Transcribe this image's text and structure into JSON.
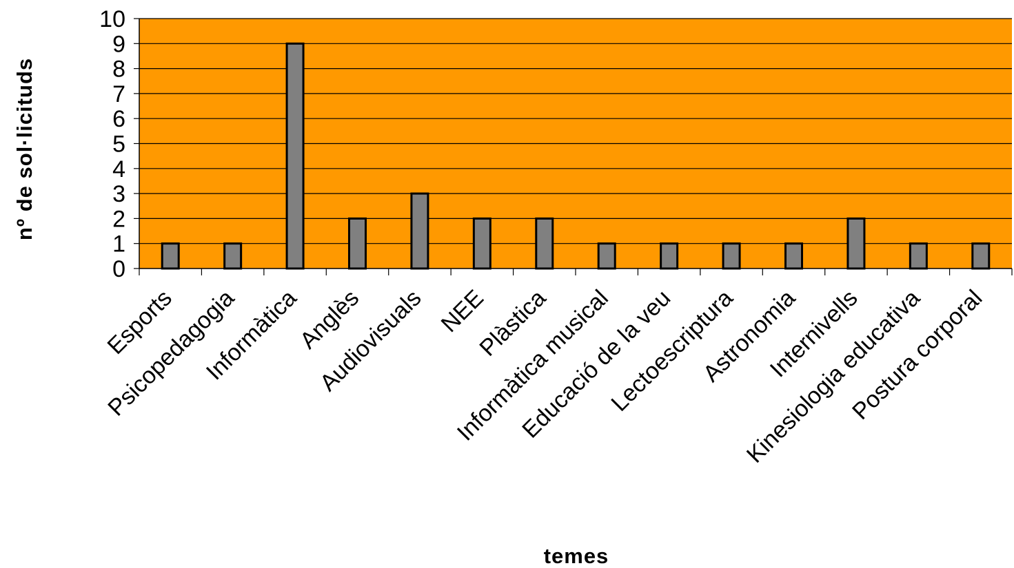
{
  "chart_data": {
    "type": "bar",
    "xlabel": "temes",
    "ylabel": "nº de sol·licituds",
    "ylim": [
      0,
      10
    ],
    "yticks": [
      0,
      1,
      2,
      3,
      4,
      5,
      6,
      7,
      8,
      9,
      10
    ],
    "grid": true,
    "legend": "none",
    "categories": [
      "Esports",
      "Psicopedagogia",
      "Informàtica",
      "Anglès",
      "Audiovisuals",
      "NEE",
      "Plàstica",
      "Informàtica musical",
      "Educació de la veu",
      "Lectoescriptura",
      "Astronomia",
      "Internivells",
      "Kinesiologia educativa",
      "Postura corporal"
    ],
    "values": [
      1,
      1,
      9,
      2,
      3,
      2,
      2,
      1,
      1,
      1,
      1,
      2,
      1,
      1
    ]
  },
  "colors": {
    "plot_background": "#FF9900",
    "bar_fill": "#808080",
    "bar_stroke": "#000000",
    "gridline": "#000000"
  }
}
